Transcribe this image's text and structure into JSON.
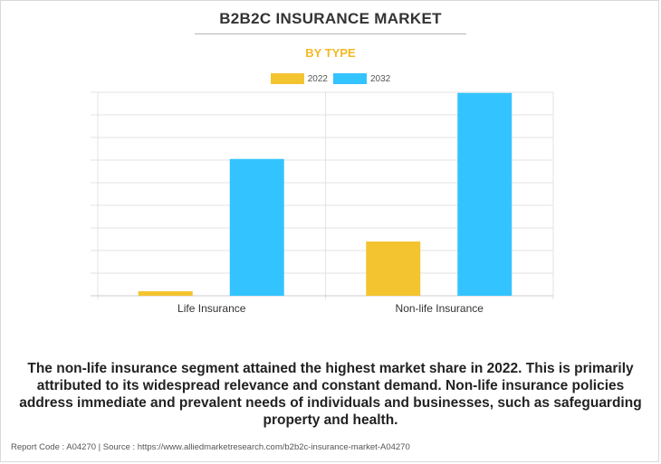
{
  "header": {
    "title": "B2B2C INSURANCE MARKET",
    "subtitle": "BY TYPE"
  },
  "colors": {
    "2022": "#f4c430",
    "2032": "#33c4ff",
    "subtitle": "#f4b824"
  },
  "chart_data": {
    "type": "bar",
    "categories": [
      "Life Insurance",
      "Non-life Insurance"
    ],
    "series": [
      {
        "name": "2022",
        "values": [
          0.2,
          2.4
        ]
      },
      {
        "name": "2032",
        "values": [
          6.05,
          8.97
        ]
      }
    ],
    "ylim": [
      0,
      9
    ],
    "grid": true,
    "legend_position": "top-center"
  },
  "caption": "The non-life insurance segment attained the highest market share in 2022. This is primarily attributed to its widespread relevance and constant demand. Non-life insurance policies address immediate and prevalent needs of individuals and businesses, such as safeguarding property and health.",
  "footer": "Report Code : A04270  |  Source : https://www.alliedmarketresearch.com/b2b2c-insurance-market-A04270"
}
